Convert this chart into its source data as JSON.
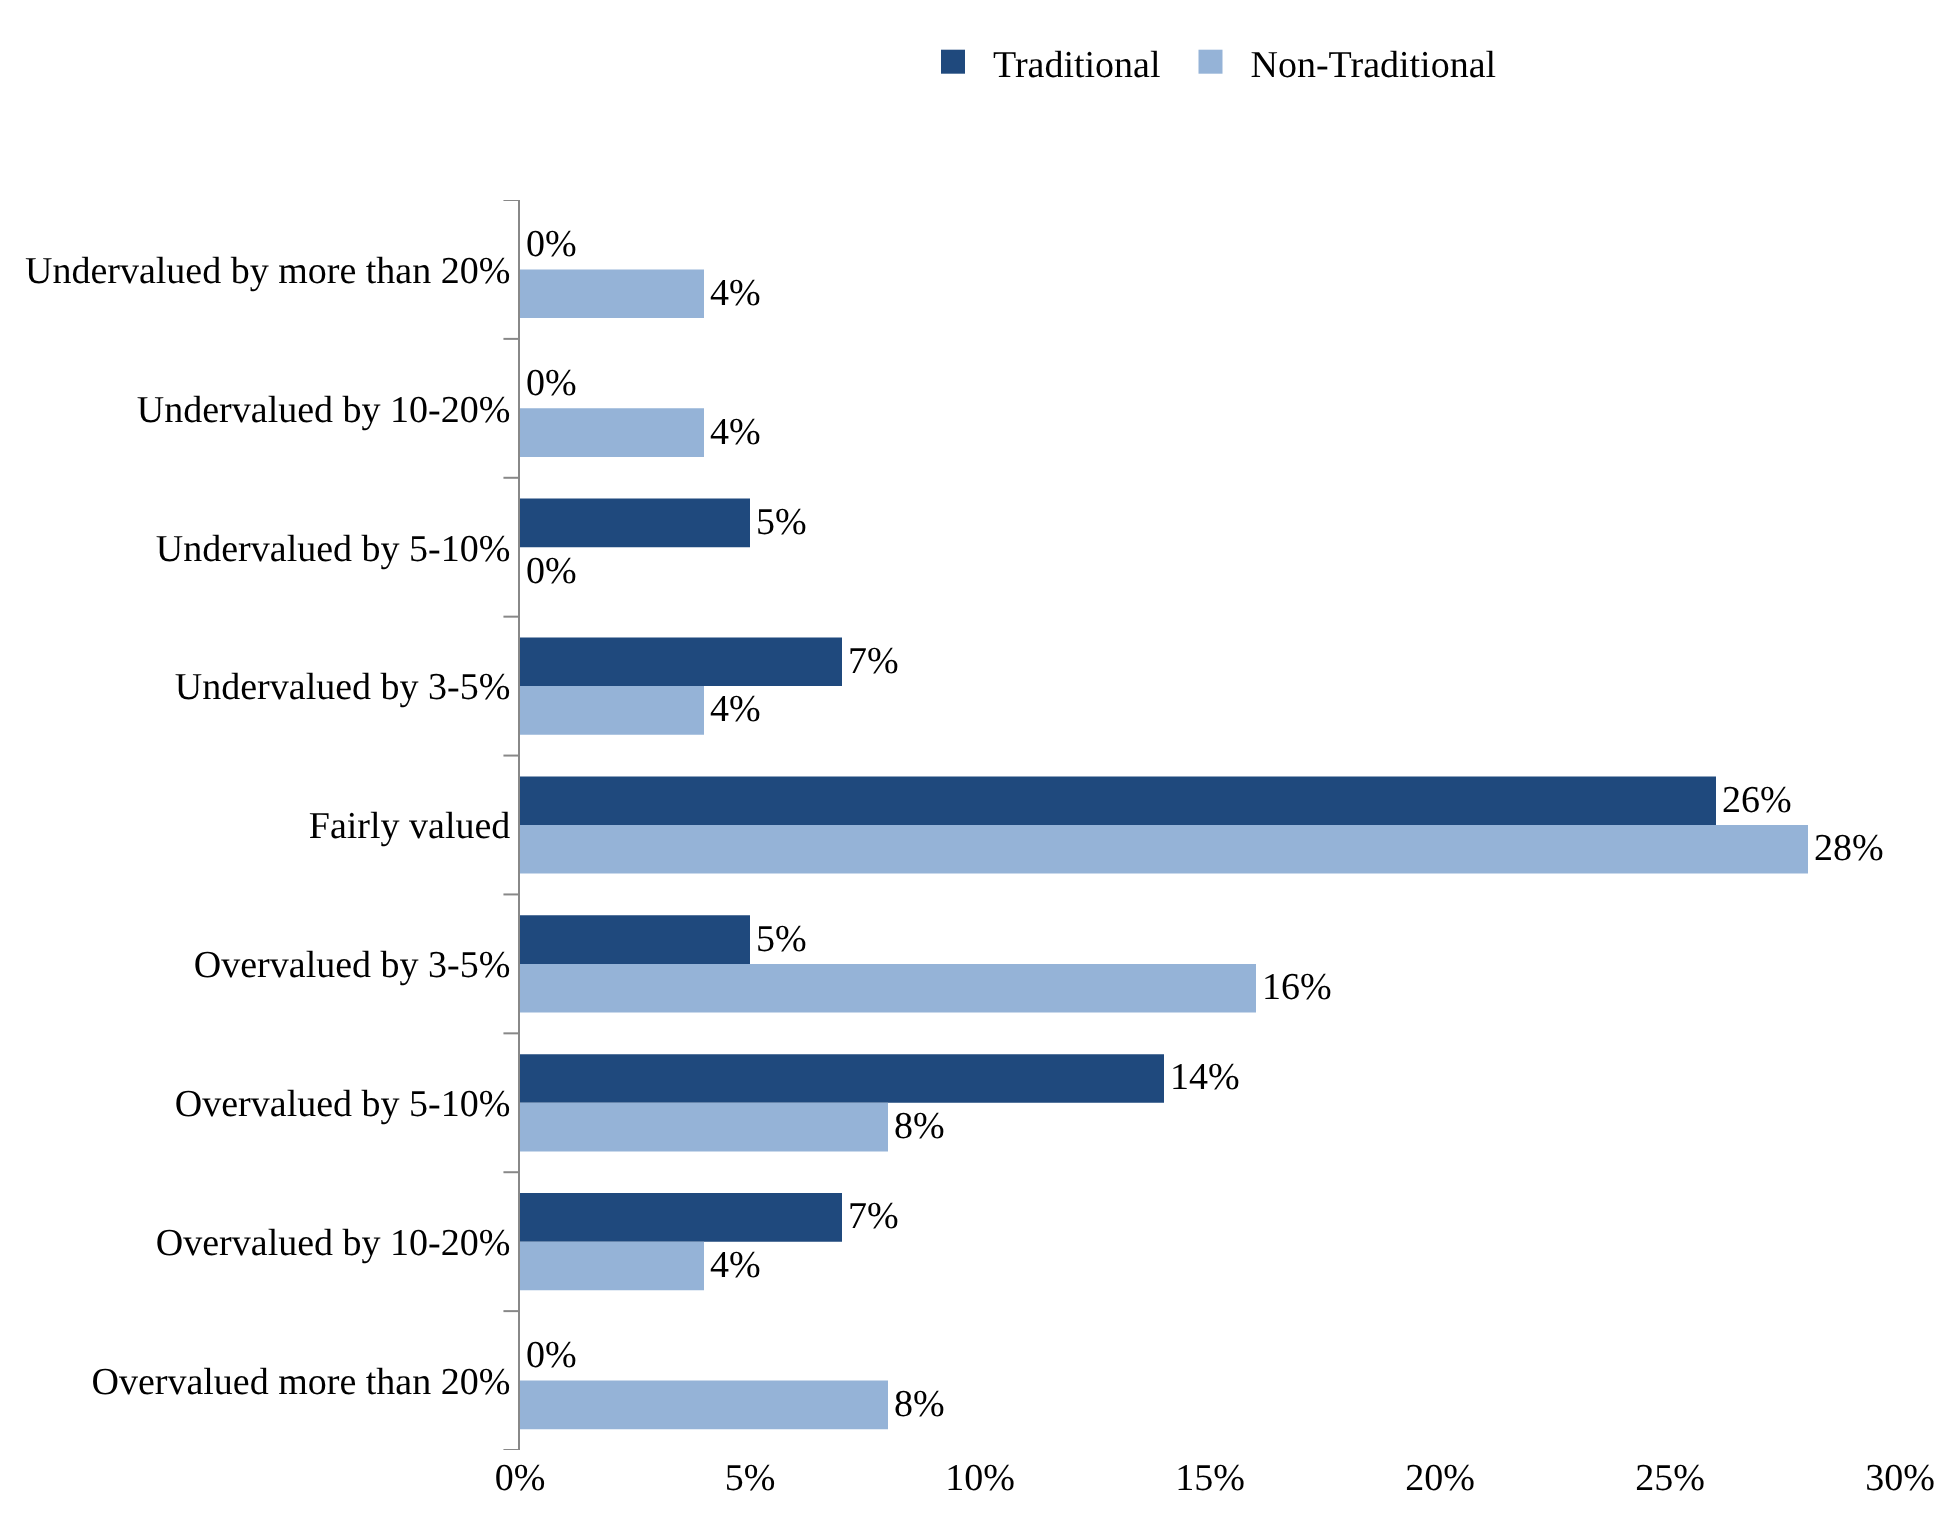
{
  "chart_data": {
    "type": "bar",
    "orientation": "horizontal",
    "categories": [
      "Undervalued by more than 20%",
      "Undervalued by 10-20%",
      "Undervalued by 5-10%",
      "Undervalued by 3-5%",
      "Fairly valued",
      "Overvalued by 3-5%",
      "Overvalued by 5-10%",
      "Overvalued by 10-20%",
      "Overvalued more than 20%"
    ],
    "series": [
      {
        "name": "Traditional",
        "color": "#1f497d",
        "values": [
          0,
          0,
          5,
          7,
          26,
          5,
          14,
          7,
          0
        ],
        "value_labels": [
          "0%",
          "0%",
          "5%",
          "7%",
          "26%",
          "5%",
          "14%",
          "7%",
          "0%"
        ]
      },
      {
        "name": "Non-Traditional",
        "color": "#95b3d7",
        "values": [
          4,
          4,
          0,
          4,
          28,
          16,
          8,
          4,
          8
        ],
        "value_labels": [
          "4%",
          "4%",
          "0%",
          "4%",
          "28%",
          "16%",
          "8%",
          "4%",
          "8%"
        ]
      }
    ],
    "xlim": [
      0,
      30
    ],
    "xticks": [
      {
        "value": 0,
        "label": "0%"
      },
      {
        "value": 5,
        "label": "5%"
      },
      {
        "value": 10,
        "label": "10%"
      },
      {
        "value": 15,
        "label": "15%"
      },
      {
        "value": 20,
        "label": "20%"
      },
      {
        "value": 25,
        "label": "25%"
      },
      {
        "value": 30,
        "label": "30%"
      }
    ],
    "grid": false,
    "legend": "top"
  }
}
